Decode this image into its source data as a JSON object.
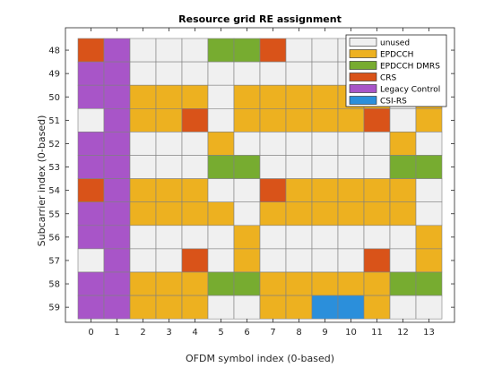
{
  "chart_data": {
    "type": "heatmap",
    "title": "Resource grid RE assignment",
    "xlabel": "OFDM symbol index (0-based)",
    "ylabel": "Subcarrier index (0-based)",
    "x_ticks": [
      "0",
      "1",
      "2",
      "3",
      "4",
      "5",
      "6",
      "7",
      "8",
      "9",
      "10",
      "11",
      "12",
      "13"
    ],
    "y_ticks": [
      "48",
      "49",
      "50",
      "51",
      "52",
      "53",
      "54",
      "55",
      "56",
      "57",
      "58",
      "59"
    ],
    "grid": true,
    "legend_position": "top-right",
    "categories": [
      {
        "key": "unused",
        "label": "unused",
        "color": "#f0f0f0"
      },
      {
        "key": "epdcch",
        "label": "EPDCCH",
        "color": "#edb120"
      },
      {
        "key": "dmrs",
        "label": "EPDCCH DMRS",
        "color": "#77ac30"
      },
      {
        "key": "crs",
        "label": "CRS",
        "color": "#d95319"
      },
      {
        "key": "legacy",
        "label": "Legacy Control",
        "color": "#a855c8"
      },
      {
        "key": "csirs",
        "label": "CSI-RS",
        "color": "#2b8fdb"
      }
    ],
    "rows": [
      {
        "subcarrier": "48",
        "cells": [
          "crs",
          "legacy",
          "unused",
          "unused",
          "unused",
          "dmrs",
          "dmrs",
          "crs",
          "unused",
          "unused",
          "unused",
          "unused",
          "unused",
          "unused"
        ]
      },
      {
        "subcarrier": "49",
        "cells": [
          "legacy",
          "legacy",
          "unused",
          "unused",
          "unused",
          "unused",
          "unused",
          "unused",
          "unused",
          "unused",
          "unused",
          "unused",
          "unused",
          "unused"
        ]
      },
      {
        "subcarrier": "50",
        "cells": [
          "legacy",
          "legacy",
          "epdcch",
          "epdcch",
          "epdcch",
          "unused",
          "epdcch",
          "epdcch",
          "epdcch",
          "epdcch",
          "epdcch",
          "epdcch",
          "unused",
          "epdcch"
        ]
      },
      {
        "subcarrier": "51",
        "cells": [
          "unused",
          "legacy",
          "epdcch",
          "epdcch",
          "crs",
          "unused",
          "epdcch",
          "epdcch",
          "epdcch",
          "epdcch",
          "epdcch",
          "crs",
          "unused",
          "epdcch"
        ]
      },
      {
        "subcarrier": "52",
        "cells": [
          "legacy",
          "legacy",
          "unused",
          "unused",
          "unused",
          "epdcch",
          "unused",
          "unused",
          "unused",
          "unused",
          "unused",
          "unused",
          "epdcch",
          "unused"
        ]
      },
      {
        "subcarrier": "53",
        "cells": [
          "legacy",
          "legacy",
          "unused",
          "unused",
          "unused",
          "dmrs",
          "dmrs",
          "unused",
          "unused",
          "unused",
          "unused",
          "unused",
          "dmrs",
          "dmrs"
        ]
      },
      {
        "subcarrier": "54",
        "cells": [
          "crs",
          "legacy",
          "epdcch",
          "epdcch",
          "epdcch",
          "unused",
          "unused",
          "crs",
          "epdcch",
          "epdcch",
          "epdcch",
          "epdcch",
          "epdcch",
          "unused"
        ]
      },
      {
        "subcarrier": "55",
        "cells": [
          "legacy",
          "legacy",
          "epdcch",
          "epdcch",
          "epdcch",
          "epdcch",
          "unused",
          "epdcch",
          "epdcch",
          "epdcch",
          "epdcch",
          "epdcch",
          "epdcch",
          "unused"
        ]
      },
      {
        "subcarrier": "56",
        "cells": [
          "legacy",
          "legacy",
          "unused",
          "unused",
          "unused",
          "unused",
          "epdcch",
          "unused",
          "unused",
          "unused",
          "unused",
          "unused",
          "unused",
          "epdcch"
        ]
      },
      {
        "subcarrier": "57",
        "cells": [
          "unused",
          "legacy",
          "unused",
          "unused",
          "crs",
          "unused",
          "epdcch",
          "unused",
          "unused",
          "unused",
          "unused",
          "crs",
          "unused",
          "epdcch"
        ]
      },
      {
        "subcarrier": "58",
        "cells": [
          "legacy",
          "legacy",
          "epdcch",
          "epdcch",
          "epdcch",
          "dmrs",
          "dmrs",
          "epdcch",
          "epdcch",
          "epdcch",
          "epdcch",
          "epdcch",
          "dmrs",
          "dmrs"
        ]
      },
      {
        "subcarrier": "59",
        "cells": [
          "legacy",
          "legacy",
          "epdcch",
          "epdcch",
          "epdcch",
          "unused",
          "unused",
          "epdcch",
          "epdcch",
          "csirs",
          "csirs",
          "epdcch",
          "unused",
          "unused"
        ]
      }
    ]
  }
}
